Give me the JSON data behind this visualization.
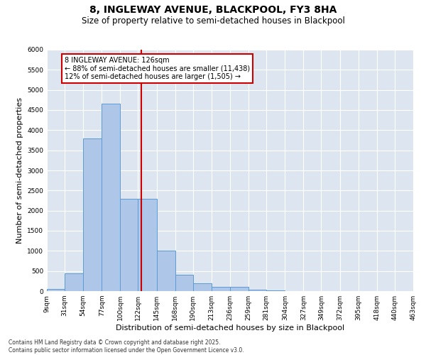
{
  "title1": "8, INGLEWAY AVENUE, BLACKPOOL, FY3 8HA",
  "title2": "Size of property relative to semi-detached houses in Blackpool",
  "xlabel": "Distribution of semi-detached houses by size in Blackpool",
  "ylabel": "Number of semi-detached properties",
  "bin_edges": [
    9,
    31,
    54,
    77,
    100,
    122,
    145,
    168,
    190,
    213,
    236,
    259,
    281,
    304,
    327,
    349,
    372,
    395,
    418,
    440,
    463
  ],
  "bar_heights": [
    50,
    450,
    3800,
    4650,
    2300,
    2300,
    1000,
    400,
    200,
    100,
    100,
    30,
    10,
    5,
    3,
    2,
    1,
    1,
    0,
    0
  ],
  "bar_color": "#aec6e8",
  "bar_edge_color": "#5b9bd5",
  "property_size": 126,
  "vline_color": "#cc0000",
  "annotation_line1": "8 INGLEWAY AVENUE: 126sqm",
  "annotation_line2": "← 88% of semi-detached houses are smaller (11,438)",
  "annotation_line3": "12% of semi-detached houses are larger (1,505) →",
  "annotation_box_color": "#cc0000",
  "ylim": [
    0,
    6000
  ],
  "yticks": [
    0,
    500,
    1000,
    1500,
    2000,
    2500,
    3000,
    3500,
    4000,
    4500,
    5000,
    5500,
    6000
  ],
  "bg_color": "#dde6f0",
  "grid_color": "#ffffff",
  "footer": "Contains HM Land Registry data © Crown copyright and database right 2025.\nContains public sector information licensed under the Open Government Licence v3.0.",
  "title1_fontsize": 10,
  "title2_fontsize": 8.5,
  "tick_label_fontsize": 6.5,
  "axis_label_fontsize": 8,
  "footer_fontsize": 5.5
}
